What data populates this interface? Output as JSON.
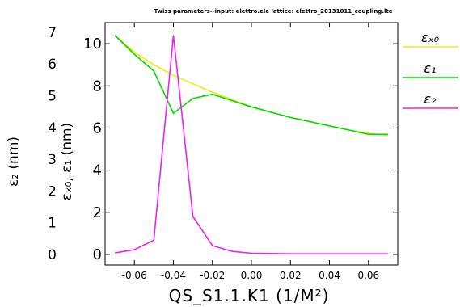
{
  "chart_data": {
    "type": "line",
    "title": "Twiss parameters--input: elettro.ele    lattice: elettro_20131011_coupling.lte",
    "xlabel": "QS_S1.1.K1  (1/M²)",
    "ylabel_left": "ε₂ (nm)",
    "ylabel_right": "εₓ₀, ε₁ (nm)",
    "xlim": [
      -0.075,
      0.075
    ],
    "xticks": [
      -0.06,
      -0.04,
      -0.02,
      0.0,
      0.02,
      0.04,
      0.06
    ],
    "xtick_labels": [
      "-0.06",
      "-0.04",
      "-0.02",
      "0.00",
      "0.02",
      "0.04",
      "0.06"
    ],
    "ylim_right": [
      -0.5,
      11.0
    ],
    "yticks_right": [
      0,
      2,
      4,
      6,
      8,
      10
    ],
    "ylim_left": [
      -0.33,
      7.3
    ],
    "yticks_left": [
      0,
      1,
      2,
      3,
      4,
      5,
      6,
      7
    ],
    "legend_position": "right",
    "series": [
      {
        "name": "εₓ₀",
        "color": "#eeee00",
        "axis": "right",
        "x": [
          -0.07,
          -0.06,
          -0.05,
          -0.04,
          -0.03,
          -0.02,
          -0.01,
          0.0,
          0.01,
          0.02,
          0.03,
          0.04,
          0.05,
          0.06,
          0.07
        ],
        "y": [
          10.4,
          9.6,
          9.0,
          8.5,
          8.1,
          7.7,
          7.35,
          7.0,
          6.75,
          6.5,
          6.3,
          6.1,
          5.9,
          5.75,
          5.65
        ]
      },
      {
        "name": "ε₁",
        "color": "#00dd00",
        "axis": "right",
        "x": [
          -0.07,
          -0.06,
          -0.05,
          -0.04,
          -0.03,
          -0.02,
          -0.01,
          0.0,
          0.01,
          0.02,
          0.03,
          0.04,
          0.05,
          0.06,
          0.07
        ],
        "y": [
          10.4,
          9.5,
          8.7,
          6.7,
          7.4,
          7.6,
          7.3,
          7.0,
          6.75,
          6.5,
          6.3,
          6.1,
          5.9,
          5.7,
          5.7
        ]
      },
      {
        "name": "ε₂",
        "color": "#ee22ee",
        "axis": "left",
        "x": [
          -0.07,
          -0.06,
          -0.05,
          -0.04,
          -0.03,
          -0.02,
          -0.01,
          0.0,
          0.01,
          0.02,
          0.03,
          0.04,
          0.05,
          0.06,
          0.07
        ],
        "y": [
          0.05,
          0.15,
          0.45,
          6.9,
          1.2,
          0.28,
          0.1,
          0.04,
          0.03,
          0.02,
          0.02,
          0.02,
          0.02,
          0.02,
          0.02
        ]
      }
    ]
  }
}
